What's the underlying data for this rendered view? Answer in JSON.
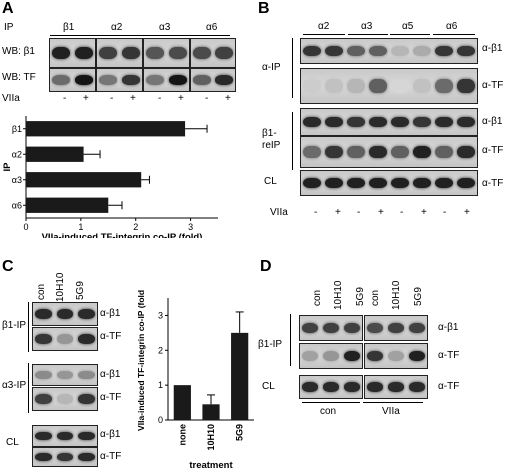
{
  "panelA": {
    "letter": "A",
    "ip_label": "IP",
    "columns": [
      "β1",
      "α2",
      "α3",
      "α6"
    ],
    "rows": [
      "WB: β1",
      "WB: TF"
    ],
    "treatment_label": "VIIa",
    "signs": [
      "-",
      "+",
      "-",
      "+",
      "-",
      "+",
      "-",
      "+"
    ]
  },
  "panelB": {
    "letter": "B",
    "columns": [
      "α2",
      "α3",
      "α5",
      "α6"
    ],
    "group1": "α-IP",
    "group2a": "β1-",
    "group2b": "reIP",
    "group3": "CL",
    "rows": [
      "α-β1",
      "α-TF",
      "α-β1",
      "α-TF",
      "α-TF"
    ],
    "treatment_label": "VIIa",
    "signs": [
      "-",
      "+",
      "-",
      "+",
      "-",
      "+",
      "-",
      "+"
    ]
  },
  "panelC": {
    "letter": "C",
    "lanes": [
      "con",
      "10H10",
      "5G9"
    ],
    "group1": "β1-IP",
    "group2": "α3-IP",
    "group3": "CL",
    "rows": [
      "α-β1",
      "α-TF",
      "α-β1",
      "α-TF",
      "α-β1",
      "α-TF"
    ]
  },
  "panelD": {
    "letter": "D",
    "lanes": [
      "con",
      "10H10",
      "5G9",
      "con",
      "10H10",
      "5G9"
    ],
    "group1": "β1-IP",
    "group2": "CL",
    "rows": [
      "α-β1",
      "α-TF",
      "α-TF"
    ],
    "bottom": [
      "con",
      "VIIa"
    ]
  },
  "chart_data": [
    {
      "type": "bar",
      "orientation": "horizontal",
      "categories": [
        "β1",
        "α2",
        "α3",
        "α6"
      ],
      "values": [
        2.9,
        1.05,
        2.1,
        1.5
      ],
      "errors": [
        0.4,
        0.3,
        0.15,
        0.25
      ],
      "xlabel": "VIIa-induced TF-integrin co-IP (fold)",
      "ylabel": "IP",
      "xlim": [
        0,
        3.5
      ],
      "xticks": [
        "0",
        "1",
        "2",
        "3"
      ],
      "grid": false
    },
    {
      "type": "bar",
      "categories": [
        "none",
        "10H10",
        "5G9"
      ],
      "values": [
        1.0,
        0.45,
        2.5
      ],
      "errors": [
        0,
        0.27,
        0.6
      ],
      "xlabel": "treatment",
      "ylabel": "VIIa-induced TF-integrin co-IP (fold)",
      "ylim": [
        0,
        3.5
      ],
      "yticks": [
        "0",
        "1",
        "2",
        "3"
      ],
      "grid": false
    }
  ]
}
